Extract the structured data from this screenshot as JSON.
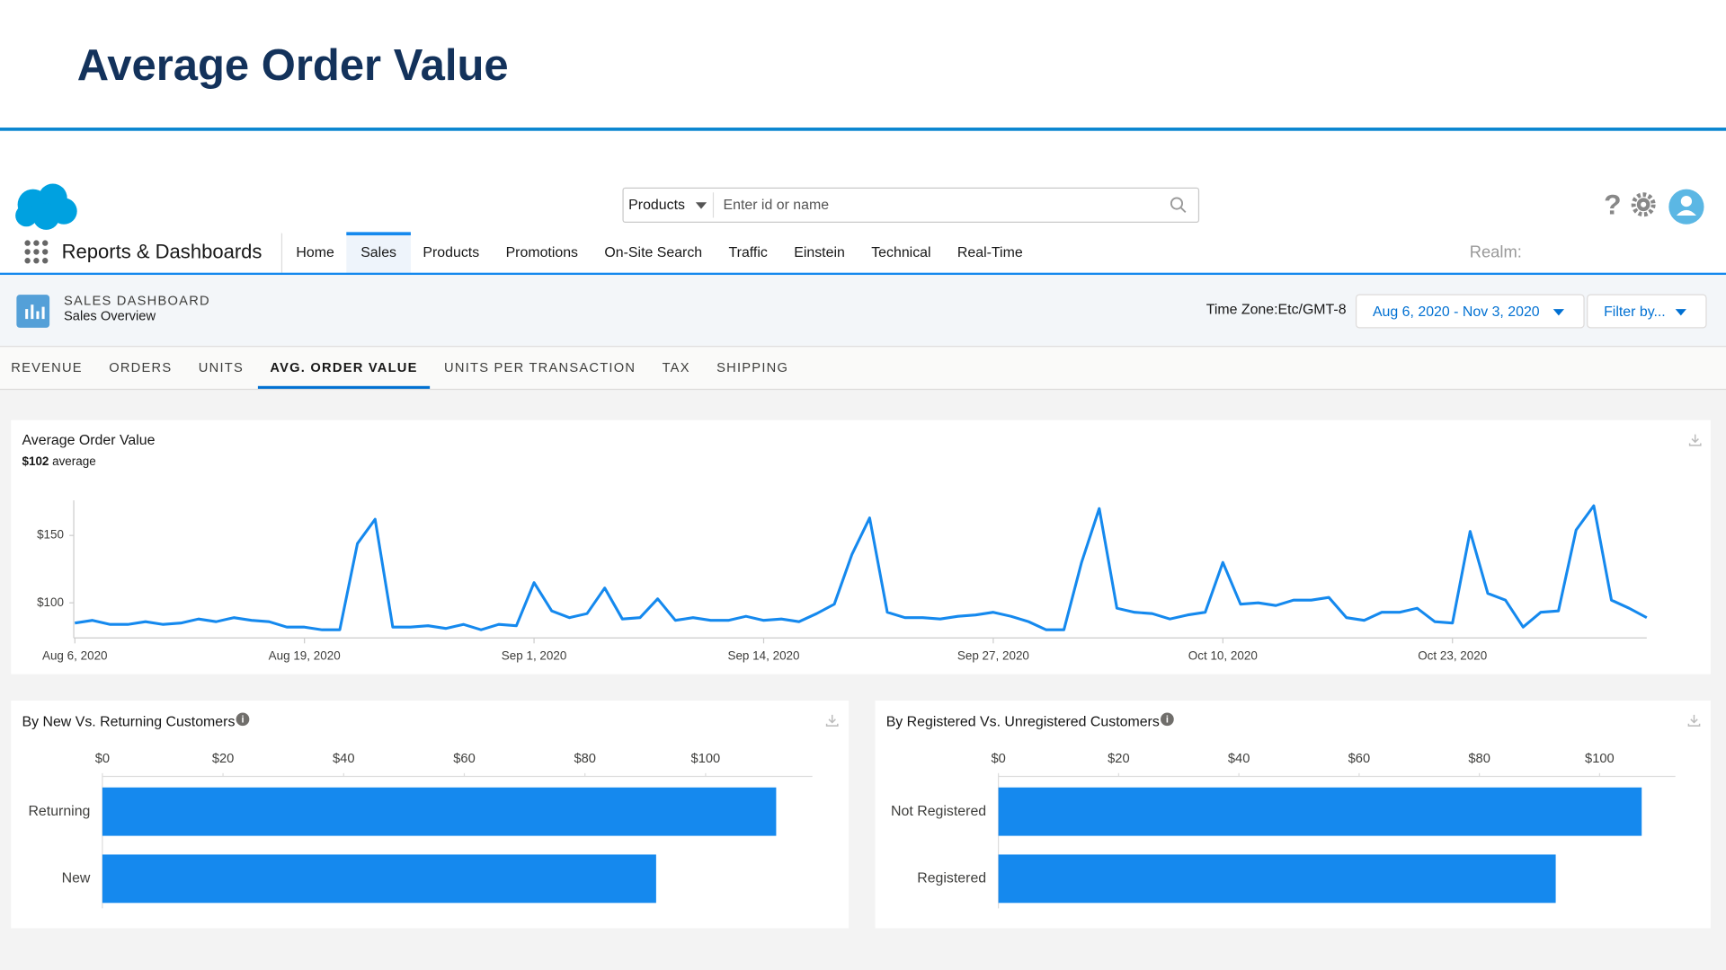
{
  "slide_title": "Average Order Value",
  "app": {
    "name": "Reports & Dashboards",
    "search_scope": "Products",
    "search_placeholder": "Enter id or name",
    "nav": [
      "Home",
      "Sales",
      "Products",
      "Promotions",
      "On-Site Search",
      "Traffic",
      "Einstein",
      "Technical",
      "Real-Time"
    ],
    "active_nav": 1,
    "realm": "Realm:"
  },
  "dashboard": {
    "kind": "SALES DASHBOARD",
    "name": "Sales Overview",
    "time_zone": "Time Zone:Etc/GMT-8",
    "date_range": "Aug 6, 2020 - Nov 3, 2020",
    "filter": "Filter by...",
    "tabs": [
      "REVENUE",
      "ORDERS",
      "UNITS",
      "AVG. ORDER VALUE",
      "UNITS PER TRANSACTION",
      "TAX",
      "SHIPPING"
    ],
    "active_tab": 3
  },
  "chart_data": [
    {
      "type": "line",
      "title": "Average Order Value",
      "subtitle_value": "$102",
      "subtitle": "average",
      "x": [
        "2020-08-06",
        "2020-08-07",
        "2020-08-08",
        "2020-08-09",
        "2020-08-10",
        "2020-08-11",
        "2020-08-12",
        "2020-08-13",
        "2020-08-14",
        "2020-08-15",
        "2020-08-16",
        "2020-08-17",
        "2020-08-18",
        "2020-08-19",
        "2020-08-20",
        "2020-08-21",
        "2020-08-22",
        "2020-08-23",
        "2020-08-24",
        "2020-08-25",
        "2020-08-26",
        "2020-08-27",
        "2020-08-28",
        "2020-08-29",
        "2020-08-30",
        "2020-08-31",
        "2020-09-01",
        "2020-09-02",
        "2020-09-03",
        "2020-09-04",
        "2020-09-05",
        "2020-09-06",
        "2020-09-07",
        "2020-09-08",
        "2020-09-09",
        "2020-09-10",
        "2020-09-11",
        "2020-09-12",
        "2020-09-13",
        "2020-09-14",
        "2020-09-15",
        "2020-09-16",
        "2020-09-17",
        "2020-09-18",
        "2020-09-19",
        "2020-09-20",
        "2020-09-21",
        "2020-09-22",
        "2020-09-23",
        "2020-09-24",
        "2020-09-25",
        "2020-09-26",
        "2020-09-27",
        "2020-09-28",
        "2020-09-29",
        "2020-09-30",
        "2020-10-01",
        "2020-10-02",
        "2020-10-03",
        "2020-10-04",
        "2020-10-05",
        "2020-10-06",
        "2020-10-07",
        "2020-10-08",
        "2020-10-09",
        "2020-10-10",
        "2020-10-11",
        "2020-10-12",
        "2020-10-13",
        "2020-10-14",
        "2020-10-15",
        "2020-10-16",
        "2020-10-17",
        "2020-10-18",
        "2020-10-19",
        "2020-10-20",
        "2020-10-21",
        "2020-10-22",
        "2020-10-23",
        "2020-10-24",
        "2020-10-25",
        "2020-10-26",
        "2020-10-27",
        "2020-10-28",
        "2020-10-29",
        "2020-10-30",
        "2020-10-31",
        "2020-11-01",
        "2020-11-02",
        "2020-11-03"
      ],
      "series": [
        {
          "name": "Average Order Value",
          "color": "#1589ee",
          "values": [
            85,
            87,
            84,
            84,
            86,
            84,
            85,
            88,
            86,
            89,
            87,
            86,
            82,
            82,
            80,
            80,
            144,
            162,
            82,
            82,
            83,
            81,
            84,
            80,
            84,
            83,
            115,
            94,
            89,
            92,
            111,
            88,
            89,
            103,
            87,
            89,
            87,
            87,
            90,
            87,
            88,
            86,
            92,
            99,
            136,
            163,
            93,
            89,
            89,
            88,
            90,
            91,
            93,
            90,
            86,
            80,
            80,
            130,
            170,
            96,
            93,
            92,
            88,
            91,
            93,
            130,
            99,
            100,
            98,
            102,
            102,
            104,
            89,
            87,
            93,
            93,
            96,
            86,
            85,
            153,
            107,
            102,
            82,
            93,
            94,
            154,
            172,
            102,
            96,
            89
          ]
        }
      ],
      "ylim": [
        74,
        176
      ],
      "yticks": [
        {
          "value": 100,
          "label": "$100"
        },
        {
          "value": 150,
          "label": "$150"
        }
      ],
      "xticks": [
        {
          "value": "2020-08-06",
          "label": "Aug 6, 2020"
        },
        {
          "value": "2020-08-19",
          "label": "Aug 19, 2020"
        },
        {
          "value": "2020-09-01",
          "label": "Sep 1, 2020"
        },
        {
          "value": "2020-09-14",
          "label": "Sep 14, 2020"
        },
        {
          "value": "2020-09-27",
          "label": "Sep 27, 2020"
        },
        {
          "value": "2020-10-10",
          "label": "Oct 10, 2020"
        },
        {
          "value": "2020-10-23",
          "label": "Oct 23, 2020"
        }
      ]
    },
    {
      "type": "hbar",
      "title": "By New Vs. Returning Customers",
      "categories": [
        "Returning",
        "New"
      ],
      "values": [
        111.7,
        91.8
      ],
      "color": "#1589ee",
      "xlim": [
        0,
        117.7
      ],
      "xticks": [
        {
          "value": 0,
          "label": "$0"
        },
        {
          "value": 20,
          "label": "$20"
        },
        {
          "value": 40,
          "label": "$40"
        },
        {
          "value": 60,
          "label": "$60"
        },
        {
          "value": 80,
          "label": "$80"
        },
        {
          "value": 100,
          "label": "$100"
        }
      ]
    },
    {
      "type": "hbar",
      "title": "By Registered Vs. Unregistered Customers",
      "categories": [
        "Not Registered",
        "Registered"
      ],
      "values": [
        107,
        92.7
      ],
      "color": "#1589ee",
      "xlim": [
        0,
        112.6
      ],
      "xticks": [
        {
          "value": 0,
          "label": "$0"
        },
        {
          "value": 20,
          "label": "$20"
        },
        {
          "value": 40,
          "label": "$40"
        },
        {
          "value": 60,
          "label": "$60"
        },
        {
          "value": 80,
          "label": "$80"
        },
        {
          "value": 100,
          "label": "$100"
        }
      ]
    }
  ]
}
